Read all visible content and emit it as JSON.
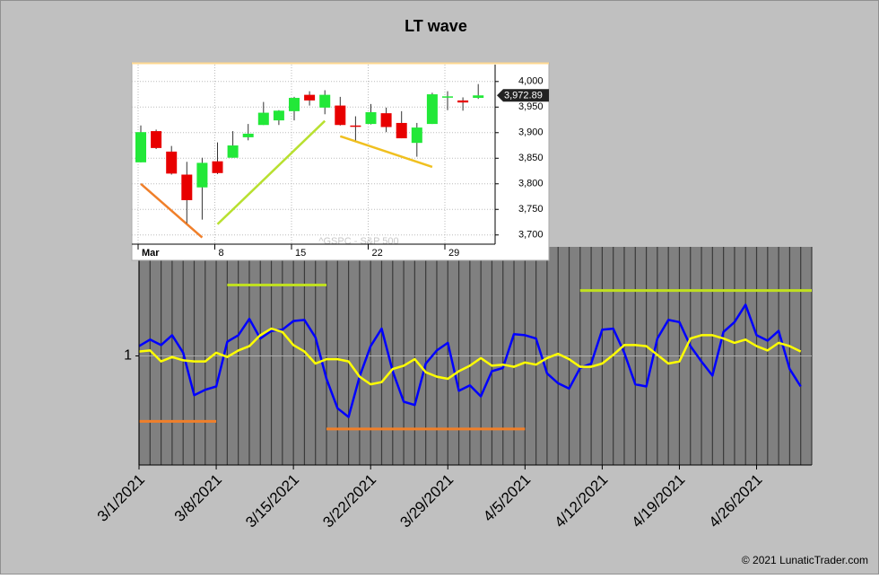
{
  "chart_data": [
    {
      "type": "line",
      "title": "LT wave",
      "x": [
        "3/1/2021",
        "3/2/2021",
        "3/3/2021",
        "3/4/2021",
        "3/5/2021",
        "3/6/2021",
        "3/7/2021",
        "3/8/2021",
        "3/9/2021",
        "3/10/2021",
        "3/11/2021",
        "3/12/2021",
        "3/13/2021",
        "3/14/2021",
        "3/15/2021",
        "3/16/2021",
        "3/17/2021",
        "3/18/2021",
        "3/19/2021",
        "3/20/2021",
        "3/21/2021",
        "3/22/2021",
        "3/23/2021",
        "3/24/2021",
        "3/25/2021",
        "3/26/2021",
        "3/27/2021",
        "3/28/2021",
        "3/29/2021",
        "3/30/2021",
        "3/31/2021",
        "4/1/2021",
        "4/2/2021",
        "4/3/2021",
        "4/4/2021",
        "4/5/2021",
        "4/6/2021",
        "4/7/2021",
        "4/8/2021",
        "4/9/2021",
        "4/10/2021",
        "4/11/2021",
        "4/12/2021",
        "4/13/2021",
        "4/14/2021",
        "4/15/2021",
        "4/16/2021",
        "4/17/2021",
        "4/18/2021",
        "4/19/2021",
        "4/20/2021",
        "4/21/2021",
        "4/22/2021",
        "4/23/2021",
        "4/24/2021",
        "4/25/2021",
        "4/26/2021",
        "4/27/2021",
        "4/28/2021",
        "4/29/2021",
        "4/30/2021"
      ],
      "series": [
        {
          "color": "#0000ff",
          "values": [
            1.09,
            1.15,
            1.1,
            1.19,
            1.03,
            0.64,
            0.69,
            0.72,
            1.13,
            1.19,
            1.34,
            1.16,
            1.23,
            1.24,
            1.32,
            1.33,
            1.17,
            0.79,
            0.52,
            0.44,
            0.81,
            1.09,
            1.25,
            0.86,
            0.58,
            0.55,
            0.93,
            1.05,
            1.12,
            0.68,
            0.73,
            0.63,
            0.86,
            0.89,
            1.2,
            1.19,
            1.16,
            0.84,
            0.75,
            0.7,
            0.89,
            0.93,
            1.24,
            1.25,
            1.03,
            0.74,
            0.72,
            1.16,
            1.33,
            1.31,
            1.09,
            0.95,
            0.82,
            1.22,
            1.31,
            1.47,
            1.19,
            1.14,
            1.23,
            0.88,
            0.72
          ]
        },
        {
          "color": "#ffff00",
          "values": [
            1.04,
            1.05,
            0.95,
            0.99,
            0.96,
            0.95,
            0.95,
            1.03,
            0.99,
            1.05,
            1.09,
            1.19,
            1.25,
            1.22,
            1.1,
            1.04,
            0.93,
            0.97,
            0.97,
            0.95,
            0.81,
            0.74,
            0.76,
            0.88,
            0.91,
            0.97,
            0.85,
            0.81,
            0.79,
            0.86,
            0.91,
            0.98,
            0.91,
            0.92,
            0.9,
            0.94,
            0.92,
            0.98,
            1.02,
            0.97,
            0.9,
            0.9,
            0.93,
            1.01,
            1.1,
            1.1,
            1.09,
            1.01,
            0.93,
            0.95,
            1.16,
            1.19,
            1.19,
            1.16,
            1.12,
            1.15,
            1.09,
            1.05,
            1.12,
            1.09,
            1.04
          ]
        }
      ],
      "segments": [
        {
          "color": "#f07f2a",
          "start": "3/1/2021",
          "end": "3/8/2021",
          "value": 0.4
        },
        {
          "color": "#f07f2a",
          "start": "3/18/2021",
          "end": "4/5/2021",
          "value": 0.33
        },
        {
          "color": "#c0e020",
          "start": "3/9/2021",
          "end": "3/18/2021",
          "value": 1.65
        },
        {
          "color": "#c0e020",
          "start": "4/10/2021",
          "end": "5/1/2021",
          "value": 1.6
        }
      ],
      "xlim": [
        "3/1/2021",
        "5/1/2021"
      ],
      "xticks": [
        "3/1/2021",
        "3/8/2021",
        "3/15/2021",
        "3/22/2021",
        "3/29/2021",
        "4/5/2021",
        "4/12/2021",
        "4/19/2021",
        "4/26/2021"
      ],
      "ylim": [
        0,
        2
      ],
      "yticks": [
        1
      ],
      "grid": true,
      "footer": "© 2021 LunaticTrader.com"
    },
    {
      "type": "candlestick",
      "watermark": "^GSPC - S&P 500",
      "x": [
        "3/1",
        "3/2",
        "3/3",
        "3/4",
        "3/5",
        "3/8",
        "3/9",
        "3/10",
        "3/11",
        "3/12",
        "3/15",
        "3/16",
        "3/17",
        "3/18",
        "3/19",
        "3/22",
        "3/23",
        "3/24",
        "3/25",
        "3/26",
        "3/29",
        "3/30",
        "3/31"
      ],
      "open": [
        3842,
        3903,
        3863,
        3818,
        3793,
        3844,
        3851,
        3891,
        3915,
        3924,
        3942,
        3974,
        3949,
        3953,
        3914,
        3917,
        3938,
        3919,
        3880,
        3917,
        3969,
        3963,
        3968
      ],
      "high": [
        3914,
        3906,
        3874,
        3843,
        3851,
        3881,
        3903,
        3917,
        3960,
        3944,
        3970,
        3981,
        3983,
        3970,
        3932,
        3956,
        3949,
        3942,
        3919,
        3978,
        3981,
        3969,
        3995
      ],
      "low": [
        3842,
        3868,
        3818,
        3723,
        3730,
        3819,
        3851,
        3885,
        3915,
        3915,
        3924,
        3953,
        3936,
        3914,
        3885,
        3916,
        3901,
        3889,
        3853,
        3917,
        3944,
        3943,
        3966
      ],
      "close": [
        3901,
        3870,
        3820,
        3768,
        3841,
        3821,
        3875,
        3898,
        3939,
        3943,
        3968,
        3963,
        3974,
        3915,
        3913,
        3940,
        3911,
        3889,
        3910,
        3975,
        3971,
        3959,
        3972.89
      ],
      "last_label": "3,972.89",
      "up_color": "#22e838",
      "down_color": "#e80000",
      "trendlines": [
        {
          "color": "#f07f2a",
          "start": "3/1",
          "end": "3/5",
          "from": 3800,
          "to": 3695
        },
        {
          "color": "#b8e030",
          "start": "3/8",
          "end": "3/17",
          "from": 3721,
          "to": 3923
        },
        {
          "color": "#f0c020",
          "start": "3/18",
          "end": "3/26",
          "from": 3893,
          "to": 3833
        }
      ],
      "xticks": [
        {
          "value": "3/1",
          "label": "Mar"
        },
        {
          "value": "3/8",
          "label": "8"
        },
        {
          "value": "3/15",
          "label": "15"
        },
        {
          "value": "3/22",
          "label": "22"
        },
        {
          "value": "3/29",
          "label": "29"
        }
      ],
      "ylim": [
        3682,
        4033
      ],
      "yticks": [
        {
          "value": 3700,
          "label": "3,700"
        },
        {
          "value": 3750,
          "label": "3,750"
        },
        {
          "value": 3800,
          "label": "3,800"
        },
        {
          "value": 3850,
          "label": "3,850"
        },
        {
          "value": 3900,
          "label": "3,900"
        },
        {
          "value": 3950,
          "label": "3,950"
        },
        {
          "value": 4000,
          "label": "4,000"
        }
      ]
    }
  ]
}
